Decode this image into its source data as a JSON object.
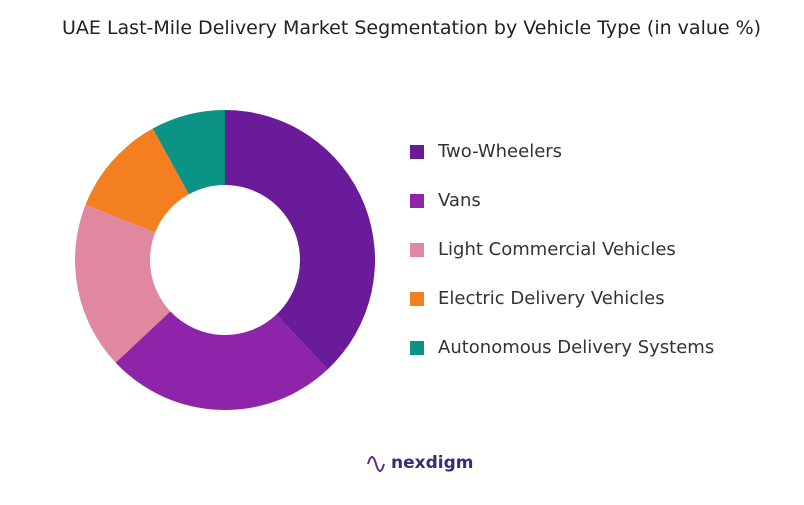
{
  "chart_data": {
    "type": "donut",
    "title": "UAE Last-Mile Delivery Market Segmentation by Vehicle Type (in value %)",
    "categories": [
      "Two-Wheelers",
      "Vans",
      "Light Commercial Vehicles",
      "Electric Delivery Vehicles",
      "Autonomous Delivery Systems"
    ],
    "values": [
      38,
      25,
      18,
      11,
      8
    ],
    "colors": [
      "#6a1b9a",
      "#8e24aa",
      "#e088a0",
      "#f47f20",
      "#0b9485"
    ],
    "legend": "right",
    "watermark": "nexdigm"
  }
}
